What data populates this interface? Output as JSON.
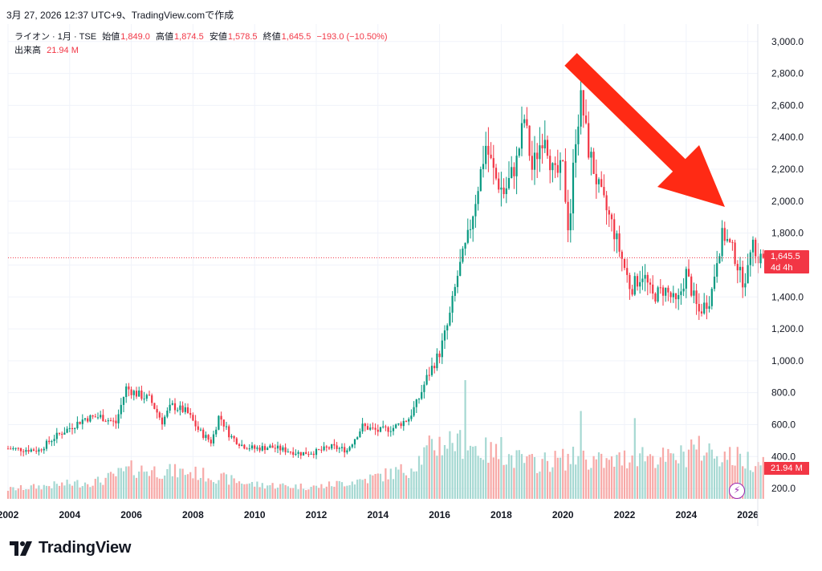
{
  "header": {
    "timestamp": "3月 27, 2026 12:37 UTC+9、TradingView.comで作成"
  },
  "legend": {
    "symbol": "ライオン · 1月 · TSE",
    "open_label": "始値",
    "open_value": "1,849.0",
    "high_label": "高値",
    "high_value": "1,874.5",
    "low_label": "安値",
    "low_value": "1,578.5",
    "close_label": "終値",
    "close_value": "1,645.5",
    "change": "−193.0 (−10.50%)",
    "volume_label": "出来高",
    "volume_value": "21.94 M"
  },
  "price_tag": {
    "price": "1,645.5",
    "countdown": "4d 4h"
  },
  "volume_tag": "21.94 M",
  "brand": {
    "name": "TradingView"
  },
  "colors": {
    "up": "#089981",
    "down": "#f23645",
    "up_vol": "#a5d8d2",
    "down_vol": "#f7a9a7",
    "arrow": "#ff2a14",
    "grid": "#f0f3fa"
  },
  "chart_data": {
    "type": "candlestick",
    "title": "ライオン · 1月 · TSE",
    "xlabel": "",
    "ylabel": "",
    "x_ticks": [
      "2002",
      "2004",
      "2006",
      "2008",
      "2010",
      "2012",
      "2014",
      "2016",
      "2018",
      "2020",
      "2022",
      "2024",
      "2026"
    ],
    "y_ticks": [
      "200.0",
      "400.0",
      "600.0",
      "800.0",
      "1,000.0",
      "1,200.0",
      "1,400.0",
      "1,600.0",
      "1,800.0",
      "2,000.0",
      "2,200.0",
      "2,400.0",
      "2,600.0",
      "2,800.0",
      "3,000.0"
    ],
    "ylim": [
      100,
      3100
    ],
    "x_range": [
      2002.0,
      2026.5
    ],
    "last_close": 1645.5,
    "price_anchors": [
      [
        2002.0,
        450
      ],
      [
        2003.0,
        440
      ],
      [
        2003.5,
        520
      ],
      [
        2004.0,
        580
      ],
      [
        2004.5,
        640
      ],
      [
        2005.0,
        650
      ],
      [
        2005.5,
        610
      ],
      [
        2005.83,
        830
      ],
      [
        2006.2,
        790
      ],
      [
        2006.6,
        760
      ],
      [
        2007.0,
        620
      ],
      [
        2007.3,
        720
      ],
      [
        2007.8,
        680
      ],
      [
        2008.2,
        560
      ],
      [
        2008.6,
        490
      ],
      [
        2008.85,
        660
      ],
      [
        2009.2,
        530
      ],
      [
        2009.6,
        470
      ],
      [
        2010.0,
        450
      ],
      [
        2010.5,
        460
      ],
      [
        2011.0,
        440
      ],
      [
        2011.5,
        420
      ],
      [
        2012.0,
        430
      ],
      [
        2012.5,
        460
      ],
      [
        2013.0,
        440
      ],
      [
        2013.5,
        590
      ],
      [
        2014.0,
        560
      ],
      [
        2014.5,
        580
      ],
      [
        2015.0,
        640
      ],
      [
        2015.3,
        750
      ],
      [
        2015.6,
        900
      ],
      [
        2016.0,
        1050
      ],
      [
        2016.3,
        1250
      ],
      [
        2016.6,
        1550
      ],
      [
        2016.9,
        1750
      ],
      [
        2017.1,
        1950
      ],
      [
        2017.5,
        2350
      ],
      [
        2017.8,
        2150
      ],
      [
        2018.1,
        2050
      ],
      [
        2018.5,
        2250
      ],
      [
        2018.75,
        2520
      ],
      [
        2019.0,
        2200
      ],
      [
        2019.4,
        2450
      ],
      [
        2019.7,
        2150
      ],
      [
        2020.0,
        2200
      ],
      [
        2020.2,
        1790
      ],
      [
        2020.4,
        2400
      ],
      [
        2020.6,
        2650
      ],
      [
        2020.8,
        2350
      ],
      [
        2021.2,
        2050
      ],
      [
        2021.6,
        1850
      ],
      [
        2021.9,
        1650
      ],
      [
        2022.2,
        1450
      ],
      [
        2022.6,
        1550
      ],
      [
        2022.9,
        1400
      ],
      [
        2023.3,
        1450
      ],
      [
        2023.7,
        1350
      ],
      [
        2024.0,
        1550
      ],
      [
        2024.4,
        1300
      ],
      [
        2024.8,
        1400
      ],
      [
        2025.0,
        1650
      ],
      [
        2025.2,
        1800
      ],
      [
        2025.6,
        1650
      ],
      [
        2025.8,
        1500
      ],
      [
        2026.0,
        1550
      ],
      [
        2026.15,
        1849
      ],
      [
        2026.25,
        1645.5
      ]
    ],
    "volume_scale_label": "21.94 M",
    "volume_anchors": [
      [
        2002.0,
        0.08
      ],
      [
        2005.0,
        0.15
      ],
      [
        2006.0,
        0.25
      ],
      [
        2008.0,
        0.22
      ],
      [
        2010.0,
        0.12
      ],
      [
        2012.0,
        0.1
      ],
      [
        2013.5,
        0.16
      ],
      [
        2015.0,
        0.25
      ],
      [
        2015.8,
        0.45
      ],
      [
        2016.5,
        0.5
      ],
      [
        2017.5,
        0.4
      ],
      [
        2019.0,
        0.3
      ],
      [
        2020.5,
        0.35
      ],
      [
        2021.5,
        0.3
      ],
      [
        2022.5,
        0.38
      ],
      [
        2023.5,
        0.33
      ],
      [
        2024.5,
        0.42
      ],
      [
        2025.5,
        0.35
      ],
      [
        2026.25,
        0.32
      ]
    ],
    "volume_spikes": [
      [
        2016.8,
        1.0
      ],
      [
        2020.6,
        0.74
      ],
      [
        2022.3,
        0.68
      ],
      [
        2016.6,
        0.55
      ],
      [
        2018.0,
        0.52
      ],
      [
        2024.2,
        0.5
      ]
    ]
  }
}
